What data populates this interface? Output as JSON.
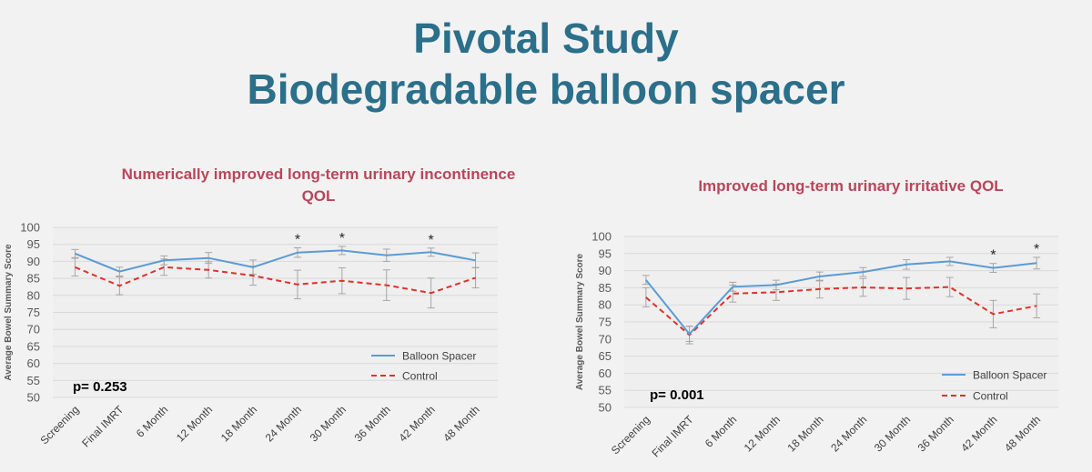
{
  "slide": {
    "title_line1": "Pivotal Study",
    "title_line2": "Biodegradable balloon spacer"
  },
  "colors": {
    "title": "#2b6f8a",
    "subtitle": "#b8465a",
    "balloon": "#5b9bd5",
    "control": "#e0302a",
    "errorbar": "#a6a6a6",
    "grid": "#d9d9d9"
  },
  "chart_data": [
    {
      "type": "line",
      "title": "Numerically improved long-term urinary incontinence QOL",
      "ylabel": "Average Bowel Summary Score",
      "ylim": [
        50,
        100
      ],
      "yticks": [
        100,
        95,
        90,
        85,
        80,
        75,
        70,
        65,
        60,
        55,
        50
      ],
      "categories": [
        "Screening",
        "Final IMRT",
        "6 Month",
        "12 Month",
        "18 Month",
        "24 Month",
        "30 Month",
        "36 Month",
        "42 Month",
        "48 Month"
      ],
      "series": [
        {
          "name": "Balloon Spacer",
          "style": "solid",
          "values": [
            92.3,
            87.0,
            90.3,
            91.0,
            88.3,
            92.6,
            93.2,
            91.8,
            92.7,
            90.3
          ],
          "errors": [
            1.2,
            1.3,
            1.3,
            1.6,
            2.1,
            1.4,
            1.2,
            1.8,
            1.2,
            2.2
          ]
        },
        {
          "name": "Control",
          "style": "dashed",
          "values": [
            88.3,
            82.8,
            88.3,
            87.5,
            85.8,
            83.2,
            84.3,
            83.0,
            80.7,
            85.2
          ],
          "errors": [
            2.6,
            2.6,
            2.4,
            2.4,
            2.8,
            4.2,
            3.8,
            4.5,
            4.4,
            3.0
          ]
        }
      ],
      "significant": [
        "24 Month",
        "30 Month",
        "42 Month"
      ],
      "marker": "*",
      "pvalue": "p= 0.253",
      "legend_position": "lower-right"
    },
    {
      "type": "line",
      "title": "Improved long-term urinary irritative QOL",
      "ylabel": "Average Bowel Summary Score",
      "ylim": [
        50,
        100
      ],
      "yticks": [
        100,
        95,
        90,
        85,
        80,
        75,
        70,
        65,
        60,
        55,
        50
      ],
      "categories": [
        "Screening",
        "Final IMRT",
        "6 Month",
        "12 Month",
        "18 Month",
        "24 Month",
        "30 Month",
        "36 Month",
        "42 Month",
        "48 Month"
      ],
      "series": [
        {
          "name": "Balloon Spacer",
          "style": "solid",
          "values": [
            87.3,
            71.5,
            85.3,
            85.8,
            88.3,
            89.6,
            91.8,
            92.7,
            90.8,
            92.2
          ],
          "errors": [
            1.3,
            2.2,
            1.3,
            1.4,
            1.3,
            1.3,
            1.4,
            1.2,
            1.3,
            1.7
          ]
        },
        {
          "name": "Control",
          "style": "dashed",
          "values": [
            82.2,
            71.2,
            83.3,
            83.7,
            84.6,
            85.1,
            84.8,
            85.2,
            77.3,
            79.7
          ],
          "errors": [
            2.8,
            2.6,
            2.5,
            2.4,
            2.6,
            2.6,
            3.2,
            2.8,
            4.0,
            3.5
          ]
        }
      ],
      "significant": [
        "42 Month",
        "48 Month"
      ],
      "marker": "*",
      "pvalue": "p= 0.001",
      "legend_position": "lower-right"
    }
  ]
}
